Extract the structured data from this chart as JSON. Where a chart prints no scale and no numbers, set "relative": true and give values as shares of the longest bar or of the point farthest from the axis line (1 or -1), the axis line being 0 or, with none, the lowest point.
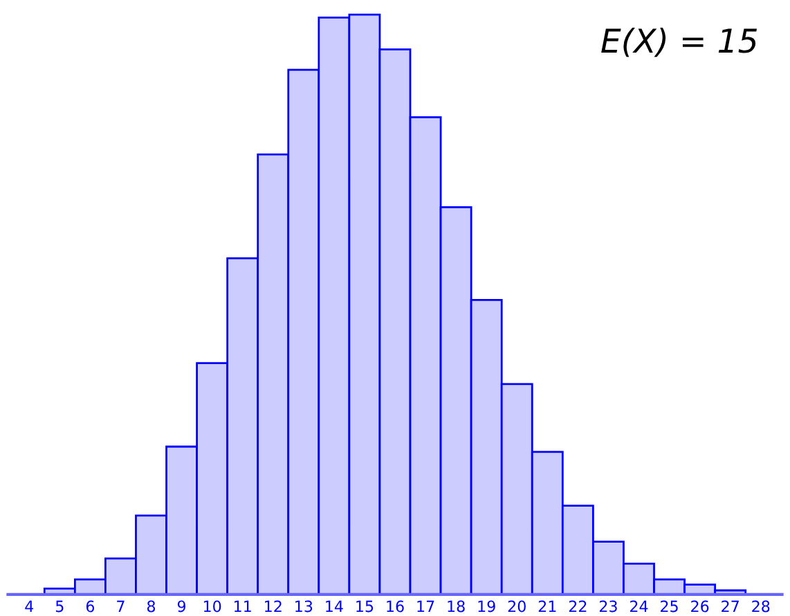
{
  "chart_data": {
    "type": "bar",
    "relative": true,
    "categories": [
      "4",
      "5",
      "6",
      "7",
      "8",
      "9",
      "10",
      "11",
      "12",
      "13",
      "14",
      "15",
      "16",
      "17",
      "18",
      "19",
      "20",
      "21",
      "22",
      "23",
      "24",
      "25",
      "26",
      "27",
      "28"
    ],
    "values": [
      null,
      0.01,
      0.026,
      0.062,
      0.136,
      0.255,
      0.399,
      0.58,
      0.759,
      0.905,
      0.995,
      1,
      0.94,
      0.823,
      0.668,
      0.508,
      0.363,
      0.246,
      0.153,
      0.091,
      0.053,
      0.026,
      0.017,
      0.007,
      null
    ],
    "color": "#ccccff",
    "annotations": [
      "E(X) = 15"
    ]
  }
}
